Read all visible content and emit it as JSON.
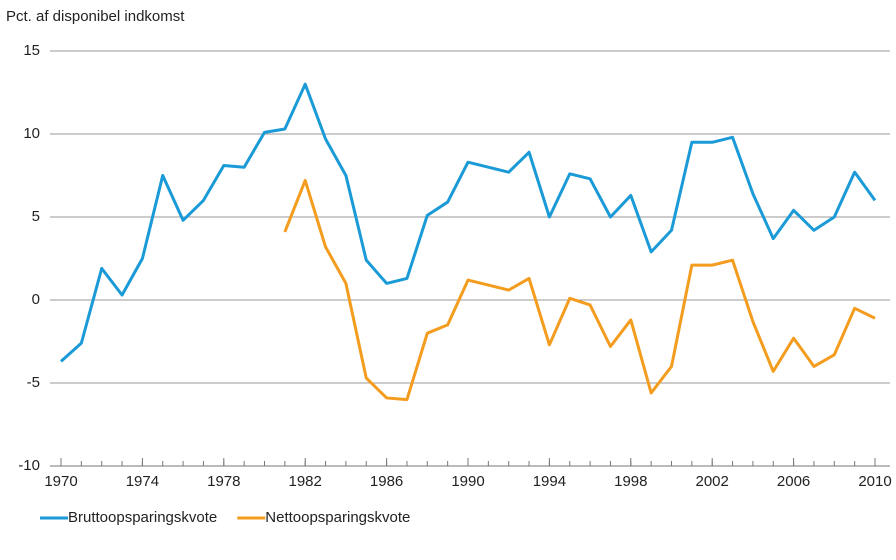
{
  "chart_data": {
    "type": "line",
    "y_label": "Pct. af disponibel indkomst",
    "x": [
      1970,
      1971,
      1972,
      1973,
      1974,
      1975,
      1976,
      1977,
      1978,
      1979,
      1980,
      1981,
      1982,
      1983,
      1984,
      1985,
      1986,
      1987,
      1988,
      1989,
      1990,
      1991,
      1992,
      1993,
      1994,
      1995,
      1996,
      1997,
      1998,
      1999,
      2000,
      2001,
      2002,
      2003,
      2004,
      2005,
      2006,
      2007,
      2008,
      2009,
      2010
    ],
    "series": [
      {
        "name": "Bruttoopsparingskvote",
        "color": "#1a9ad6",
        "values": [
          -3.7,
          -2.6,
          1.9,
          0.3,
          2.5,
          7.5,
          4.8,
          6.0,
          8.1,
          8.0,
          10.1,
          10.3,
          13.0,
          9.7,
          7.5,
          2.4,
          1.0,
          1.3,
          5.1,
          5.9,
          8.3,
          8.0,
          7.7,
          8.9,
          5.0,
          7.6,
          7.3,
          5.0,
          6.3,
          2.9,
          4.2,
          9.5,
          9.5,
          9.8,
          6.4,
          3.7,
          5.4,
          4.2,
          5.0,
          7.7,
          6.0
        ]
      },
      {
        "name": "Nettoopsparingskvote",
        "color": "#f39c1e",
        "values": [
          null,
          null,
          null,
          null,
          null,
          null,
          null,
          null,
          null,
          null,
          null,
          4.1,
          7.2,
          3.2,
          1.0,
          -4.7,
          -5.9,
          -6.0,
          -2.0,
          -1.5,
          1.2,
          0.9,
          0.6,
          1.3,
          -2.7,
          0.1,
          -0.3,
          -2.8,
          -1.2,
          -5.6,
          -4.0,
          2.1,
          2.1,
          2.4,
          -1.3,
          -4.3,
          -2.3,
          -4.0,
          -3.3,
          -0.5,
          -1.1
        ]
      }
    ],
    "xlim": [
      1970,
      2010
    ],
    "xticks": [
      1970,
      1974,
      1978,
      1982,
      1986,
      1990,
      1994,
      1998,
      2002,
      2006,
      2010
    ],
    "ylim": [
      -10,
      15
    ],
    "yticks": [
      15,
      10,
      5,
      0,
      -5,
      -10
    ],
    "grid": true
  }
}
